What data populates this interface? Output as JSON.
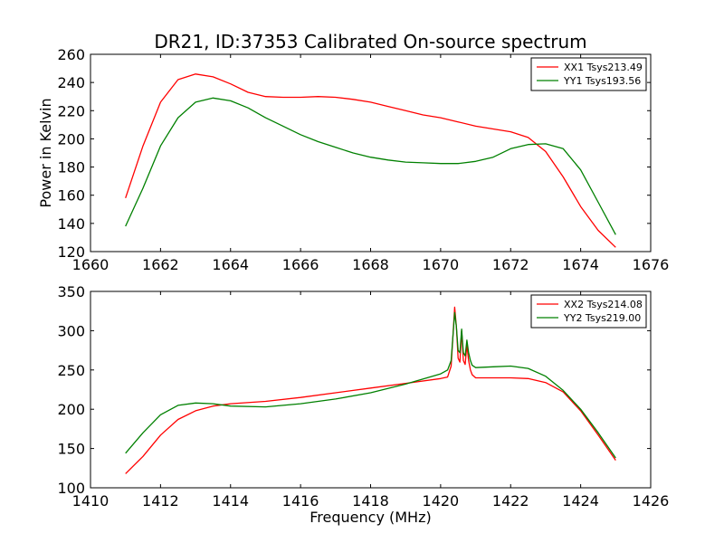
{
  "chart_data": [
    {
      "type": "line",
      "title": "DR21, ID:37353 Calibrated On-source spectrum",
      "xlabel": "",
      "ylabel": "Power in Kelvin",
      "xlim": [
        1660,
        1676
      ],
      "ylim": [
        120,
        260
      ],
      "xticks": [
        1660,
        1662,
        1664,
        1666,
        1668,
        1670,
        1672,
        1674,
        1676
      ],
      "yticks": [
        120,
        140,
        160,
        180,
        200,
        220,
        240,
        260
      ],
      "legend_position": "upper-right",
      "series": [
        {
          "name": "XX1 Tsys213.49",
          "color": "#ff0000",
          "x": [
            1661.0,
            1661.5,
            1662.0,
            1662.5,
            1663.0,
            1663.5,
            1664.0,
            1664.5,
            1665.0,
            1665.5,
            1666.0,
            1666.5,
            1667.0,
            1667.5,
            1668.0,
            1668.5,
            1669.0,
            1669.5,
            1670.0,
            1670.5,
            1671.0,
            1671.5,
            1672.0,
            1672.5,
            1673.0,
            1673.5,
            1674.0,
            1674.5,
            1675.0
          ],
          "y": [
            158,
            195,
            226,
            242,
            246,
            244,
            239,
            233,
            230,
            229.5,
            229.5,
            230,
            229.5,
            228,
            226,
            223,
            220,
            217,
            215,
            212,
            209,
            207,
            205,
            201,
            191,
            173,
            152,
            135,
            123
          ]
        },
        {
          "name": "YY1 Tsys193.56",
          "color": "#008000",
          "x": [
            1661.0,
            1661.5,
            1662.0,
            1662.5,
            1663.0,
            1663.5,
            1664.0,
            1664.5,
            1665.0,
            1665.5,
            1666.0,
            1666.5,
            1667.0,
            1667.5,
            1668.0,
            1668.5,
            1669.0,
            1669.5,
            1670.0,
            1670.5,
            1671.0,
            1671.5,
            1672.0,
            1672.5,
            1673.0,
            1673.5,
            1674.0,
            1674.5,
            1675.0
          ],
          "y": [
            138,
            165,
            195,
            215,
            226,
            229,
            227,
            222,
            215,
            209,
            203,
            198,
            194,
            190,
            187,
            185,
            183.5,
            183,
            182.5,
            182.5,
            184,
            187,
            193,
            196,
            196.5,
            193,
            178,
            155,
            132
          ]
        }
      ]
    },
    {
      "type": "line",
      "title": "",
      "xlabel": "Frequency (MHz)",
      "ylabel": "",
      "xlim": [
        1410,
        1426
      ],
      "ylim": [
        100,
        350
      ],
      "xticks": [
        1410,
        1412,
        1414,
        1416,
        1418,
        1420,
        1422,
        1424,
        1426
      ],
      "yticks": [
        100,
        150,
        200,
        250,
        300,
        350
      ],
      "legend_position": "upper-right",
      "series": [
        {
          "name": "XX2 Tsys214.08",
          "color": "#ff0000",
          "x": [
            1411.0,
            1411.5,
            1412.0,
            1412.5,
            1413.0,
            1413.5,
            1414.0,
            1415.0,
            1416.0,
            1417.0,
            1418.0,
            1419.0,
            1420.0,
            1420.2,
            1420.3,
            1420.4,
            1420.45,
            1420.5,
            1420.55,
            1420.6,
            1420.65,
            1420.7,
            1420.75,
            1420.8,
            1420.85,
            1420.9,
            1421.0,
            1421.5,
            1422.0,
            1422.5,
            1423.0,
            1423.5,
            1424.0,
            1424.5,
            1425.0
          ],
          "y": [
            118,
            140,
            167,
            187,
            198,
            204,
            207,
            210,
            215,
            221,
            227,
            233,
            239,
            241,
            255,
            330,
            305,
            265,
            260,
            300,
            262,
            257,
            282,
            262,
            250,
            244,
            240,
            240,
            240,
            239,
            234,
            222,
            198,
            167,
            135
          ]
        },
        {
          "name": "YY2 Tsys219.00",
          "color": "#008000",
          "x": [
            1411.0,
            1411.5,
            1412.0,
            1412.5,
            1413.0,
            1413.5,
            1414.0,
            1415.0,
            1416.0,
            1417.0,
            1418.0,
            1419.0,
            1420.0,
            1420.2,
            1420.3,
            1420.4,
            1420.45,
            1420.5,
            1420.55,
            1420.6,
            1420.65,
            1420.7,
            1420.75,
            1420.8,
            1420.85,
            1420.9,
            1421.0,
            1421.5,
            1422.0,
            1422.5,
            1423.0,
            1423.5,
            1424.0,
            1424.5,
            1425.0
          ],
          "y": [
            144,
            170,
            193,
            205,
            208,
            207,
            204,
            203,
            207,
            213,
            221,
            232,
            245,
            250,
            262,
            323,
            305,
            275,
            272,
            302,
            272,
            268,
            288,
            272,
            262,
            256,
            253,
            254,
            255,
            252,
            242,
            224,
            200,
            170,
            138
          ]
        }
      ]
    }
  ]
}
